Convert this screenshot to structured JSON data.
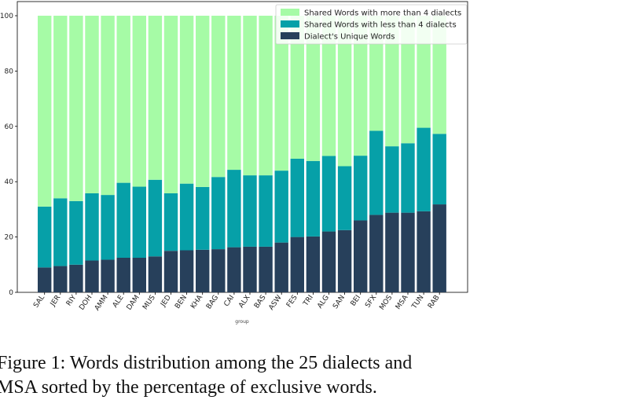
{
  "chart_data": {
    "type": "bar",
    "stacked": true,
    "categories": [
      "SAL",
      "JER",
      "RIY",
      "DOH",
      "AMM",
      "ALE",
      "DAM",
      "MUS",
      "JED",
      "BEN",
      "KHA",
      "BAG",
      "CAI",
      "ALX",
      "BAS",
      "ASW",
      "FES",
      "TRI",
      "ALG",
      "SAN",
      "BEI",
      "SFX",
      "MOS",
      "MSA",
      "TUN",
      "RAB"
    ],
    "series": [
      {
        "name": "Dialect's Unique Words",
        "color": "#27405b",
        "values": [
          9,
          9.5,
          10,
          11.5,
          11.8,
          12.5,
          12.5,
          13,
          15,
          15.2,
          15.4,
          15.6,
          16.3,
          16.5,
          16.5,
          18,
          20,
          20.2,
          22,
          22.5,
          26,
          28,
          28.8,
          28.8,
          29.3,
          31.8
        ]
      },
      {
        "name": "Shared Words with less than 4 dialects",
        "color": "#06a0a8",
        "values": [
          22,
          24.5,
          23,
          24.3,
          23.4,
          27.1,
          25.7,
          27.7,
          20.8,
          24.1,
          22.7,
          26.1,
          28,
          25.8,
          25.8,
          26,
          28.3,
          27.3,
          27.3,
          23.1,
          23.4,
          30.4,
          24,
          25.1,
          30.2,
          25.5
        ]
      },
      {
        "name": "Shared Words with more than 4 dialects",
        "color": "#a6fba6",
        "values": [
          69,
          66,
          67,
          64.2,
          64.8,
          60.4,
          61.8,
          59.3,
          64.2,
          60.7,
          61.9,
          58.3,
          55.7,
          57.7,
          57.7,
          56,
          51.7,
          52.5,
          50.7,
          54.4,
          50.6,
          41.6,
          47.2,
          46.1,
          40.5,
          42.7
        ]
      }
    ],
    "ylim": [
      0,
      100
    ],
    "yticks": [
      0,
      20,
      40,
      60,
      80,
      100
    ],
    "xlabel": "group",
    "ylabel": "",
    "legend_position": "upper-right",
    "grid": false
  },
  "caption": {
    "text": "Figure 1:  Words distribution among the 25 dialects and\nMSA sorted by the percentage of exclusive words."
  }
}
